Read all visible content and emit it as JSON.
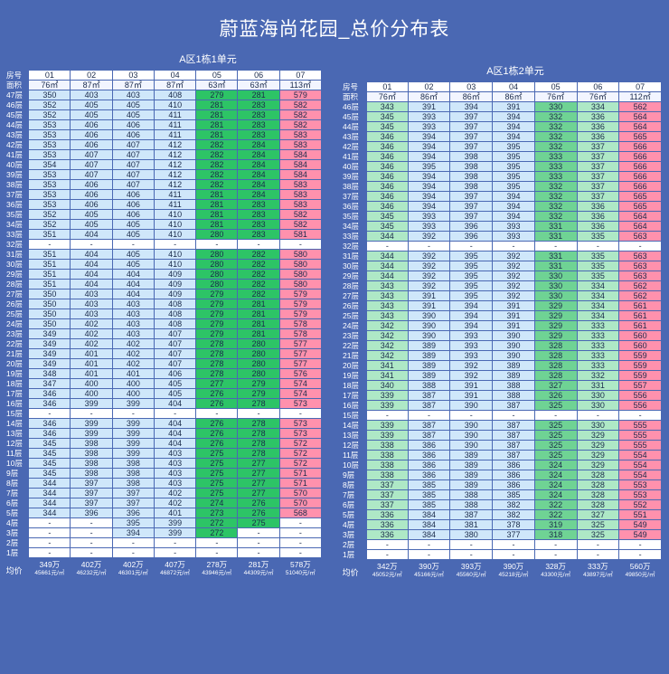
{
  "title": "蔚蓝海尚花园_总价分布表",
  "tableA": {
    "subtitle": "A区1栋1单元",
    "room_label": "房号",
    "area_label": "面积",
    "rooms": [
      "01",
      "02",
      "03",
      "04",
      "05",
      "06",
      "07"
    ],
    "areas": [
      "76㎡",
      "87㎡",
      "87㎡",
      "87㎡",
      "63㎡",
      "63㎡",
      "113㎡"
    ],
    "rows": [
      {
        "floor": "47层",
        "values": [
          "350",
          "403",
          "403",
          "408",
          "279",
          "281",
          "579"
        ]
      },
      {
        "floor": "46层",
        "values": [
          "352",
          "405",
          "405",
          "410",
          "281",
          "283",
          "582"
        ]
      },
      {
        "floor": "45层",
        "values": [
          "352",
          "405",
          "405",
          "411",
          "281",
          "283",
          "582"
        ]
      },
      {
        "floor": "44层",
        "values": [
          "353",
          "406",
          "406",
          "411",
          "281",
          "283",
          "582"
        ]
      },
      {
        "floor": "43层",
        "values": [
          "353",
          "406",
          "406",
          "411",
          "281",
          "283",
          "583"
        ]
      },
      {
        "floor": "42层",
        "values": [
          "353",
          "406",
          "407",
          "412",
          "282",
          "284",
          "583"
        ]
      },
      {
        "floor": "41层",
        "values": [
          "353",
          "407",
          "407",
          "412",
          "282",
          "284",
          "584"
        ]
      },
      {
        "floor": "40层",
        "values": [
          "354",
          "407",
          "407",
          "412",
          "282",
          "284",
          "584"
        ]
      },
      {
        "floor": "39层",
        "values": [
          "353",
          "407",
          "407",
          "412",
          "282",
          "284",
          "584"
        ]
      },
      {
        "floor": "38层",
        "values": [
          "353",
          "406",
          "407",
          "412",
          "282",
          "284",
          "583"
        ]
      },
      {
        "floor": "37层",
        "values": [
          "353",
          "406",
          "406",
          "411",
          "281",
          "284",
          "583"
        ]
      },
      {
        "floor": "36层",
        "values": [
          "353",
          "406",
          "406",
          "411",
          "281",
          "283",
          "583"
        ]
      },
      {
        "floor": "35层",
        "values": [
          "352",
          "405",
          "406",
          "410",
          "281",
          "283",
          "582"
        ]
      },
      {
        "floor": "34层",
        "values": [
          "352",
          "405",
          "405",
          "410",
          "281",
          "283",
          "582"
        ]
      },
      {
        "floor": "33层",
        "values": [
          "351",
          "404",
          "405",
          "410",
          "280",
          "283",
          "581"
        ]
      },
      {
        "floor": "32层",
        "values": [
          "-",
          "-",
          "-",
          "-",
          "-",
          "-",
          "-"
        ]
      },
      {
        "floor": "31层",
        "values": [
          "351",
          "404",
          "405",
          "410",
          "280",
          "282",
          "580"
        ]
      },
      {
        "floor": "30层",
        "values": [
          "351",
          "404",
          "405",
          "410",
          "280",
          "282",
          "580"
        ]
      },
      {
        "floor": "29层",
        "values": [
          "351",
          "404",
          "404",
          "409",
          "280",
          "282",
          "580"
        ]
      },
      {
        "floor": "28层",
        "values": [
          "351",
          "404",
          "404",
          "409",
          "280",
          "282",
          "580"
        ]
      },
      {
        "floor": "27层",
        "values": [
          "350",
          "403",
          "404",
          "409",
          "279",
          "282",
          "579"
        ]
      },
      {
        "floor": "26层",
        "values": [
          "350",
          "403",
          "403",
          "408",
          "279",
          "281",
          "579"
        ]
      },
      {
        "floor": "25层",
        "values": [
          "350",
          "403",
          "403",
          "408",
          "279",
          "281",
          "579"
        ]
      },
      {
        "floor": "24层",
        "values": [
          "350",
          "402",
          "403",
          "408",
          "279",
          "281",
          "578"
        ]
      },
      {
        "floor": "23层",
        "values": [
          "349",
          "402",
          "403",
          "407",
          "279",
          "281",
          "578"
        ]
      },
      {
        "floor": "22层",
        "values": [
          "349",
          "402",
          "402",
          "407",
          "278",
          "280",
          "577"
        ]
      },
      {
        "floor": "21层",
        "values": [
          "349",
          "401",
          "402",
          "407",
          "278",
          "280",
          "577"
        ]
      },
      {
        "floor": "20层",
        "values": [
          "349",
          "401",
          "402",
          "407",
          "278",
          "280",
          "577"
        ]
      },
      {
        "floor": "19层",
        "values": [
          "348",
          "401",
          "401",
          "406",
          "278",
          "280",
          "576"
        ]
      },
      {
        "floor": "18层",
        "values": [
          "347",
          "400",
          "400",
          "405",
          "277",
          "279",
          "574"
        ]
      },
      {
        "floor": "17层",
        "values": [
          "346",
          "400",
          "400",
          "405",
          "276",
          "279",
          "574"
        ]
      },
      {
        "floor": "16层",
        "values": [
          "346",
          "399",
          "399",
          "404",
          "276",
          "278",
          "573"
        ]
      },
      {
        "floor": "15层",
        "values": [
          "-",
          "-",
          "-",
          "-",
          "-",
          "-",
          "-"
        ]
      },
      {
        "floor": "14层",
        "values": [
          "346",
          "399",
          "399",
          "404",
          "276",
          "278",
          "573"
        ]
      },
      {
        "floor": "13层",
        "values": [
          "346",
          "399",
          "399",
          "404",
          "276",
          "278",
          "573"
        ]
      },
      {
        "floor": "12层",
        "values": [
          "345",
          "398",
          "399",
          "404",
          "276",
          "278",
          "572"
        ]
      },
      {
        "floor": "11层",
        "values": [
          "345",
          "398",
          "399",
          "403",
          "275",
          "278",
          "572"
        ]
      },
      {
        "floor": "10层",
        "values": [
          "345",
          "398",
          "398",
          "403",
          "275",
          "277",
          "572"
        ]
      },
      {
        "floor": "9层",
        "values": [
          "345",
          "398",
          "398",
          "403",
          "275",
          "277",
          "571"
        ]
      },
      {
        "floor": "8层",
        "values": [
          "344",
          "397",
          "398",
          "403",
          "275",
          "277",
          "571"
        ]
      },
      {
        "floor": "7层",
        "values": [
          "344",
          "397",
          "397",
          "402",
          "275",
          "277",
          "570"
        ]
      },
      {
        "floor": "6层",
        "values": [
          "344",
          "397",
          "397",
          "402",
          "274",
          "276",
          "570"
        ]
      },
      {
        "floor": "5层",
        "values": [
          "344",
          "396",
          "396",
          "401",
          "273",
          "276",
          "568"
        ]
      },
      {
        "floor": "4层",
        "values": [
          "-",
          "-",
          "395",
          "399",
          "272",
          "275",
          "-"
        ]
      },
      {
        "floor": "3层",
        "values": [
          "-",
          "-",
          "394",
          "399",
          "272",
          "-",
          "-"
        ]
      },
      {
        "floor": "2层",
        "values": [
          "-",
          "-",
          "-",
          "-",
          "-",
          "-",
          "-"
        ]
      },
      {
        "floor": "1层",
        "values": [
          "-",
          "-",
          "-",
          "-",
          "-",
          "-",
          "-"
        ]
      }
    ],
    "avg_label": "均价",
    "totals": [
      "349万",
      "402万",
      "402万",
      "407万",
      "278万",
      "281万",
      "578万"
    ],
    "unit_prices": [
      "45661元/㎡",
      "46232元/㎡",
      "46301元/㎡",
      "46872元/㎡",
      "43946元/㎡",
      "44309元/㎡",
      "51040元/㎡"
    ]
  },
  "tableB": {
    "subtitle": "A区1栋2单元",
    "room_label": "房号",
    "area_label": "面积",
    "rooms": [
      "01",
      "02",
      "03",
      "04",
      "05",
      "06",
      "07"
    ],
    "areas": [
      "76㎡",
      "86㎡",
      "86㎡",
      "86㎡",
      "76㎡",
      "76㎡",
      "112㎡"
    ],
    "rows": [
      {
        "floor": "46层",
        "values": [
          "343",
          "391",
          "394",
          "391",
          "330",
          "334",
          "562"
        ]
      },
      {
        "floor": "45层",
        "values": [
          "345",
          "393",
          "397",
          "394",
          "332",
          "336",
          "564"
        ]
      },
      {
        "floor": "44层",
        "values": [
          "345",
          "393",
          "397",
          "394",
          "332",
          "336",
          "564"
        ]
      },
      {
        "floor": "43层",
        "values": [
          "346",
          "394",
          "397",
          "394",
          "332",
          "336",
          "565"
        ]
      },
      {
        "floor": "42层",
        "values": [
          "346",
          "394",
          "397",
          "395",
          "332",
          "337",
          "566"
        ]
      },
      {
        "floor": "41层",
        "values": [
          "346",
          "394",
          "398",
          "395",
          "333",
          "337",
          "566"
        ]
      },
      {
        "floor": "40层",
        "values": [
          "346",
          "395",
          "398",
          "395",
          "333",
          "337",
          "566"
        ]
      },
      {
        "floor": "39层",
        "values": [
          "346",
          "394",
          "398",
          "395",
          "333",
          "337",
          "566"
        ]
      },
      {
        "floor": "38层",
        "values": [
          "346",
          "394",
          "398",
          "395",
          "332",
          "337",
          "566"
        ]
      },
      {
        "floor": "37层",
        "values": [
          "346",
          "394",
          "397",
          "394",
          "332",
          "337",
          "565"
        ]
      },
      {
        "floor": "36层",
        "values": [
          "346",
          "394",
          "397",
          "394",
          "332",
          "336",
          "565"
        ]
      },
      {
        "floor": "35层",
        "values": [
          "345",
          "393",
          "397",
          "394",
          "332",
          "336",
          "564"
        ]
      },
      {
        "floor": "34层",
        "values": [
          "345",
          "393",
          "396",
          "393",
          "331",
          "336",
          "564"
        ]
      },
      {
        "floor": "33层",
        "values": [
          "344",
          "392",
          "396",
          "393",
          "331",
          "335",
          "563"
        ]
      },
      {
        "floor": "32层",
        "values": [
          "-",
          "-",
          "-",
          "-",
          "-",
          "-",
          "-"
        ]
      },
      {
        "floor": "31层",
        "values": [
          "344",
          "392",
          "395",
          "392",
          "331",
          "335",
          "563"
        ]
      },
      {
        "floor": "30层",
        "values": [
          "344",
          "392",
          "395",
          "392",
          "331",
          "335",
          "563"
        ]
      },
      {
        "floor": "29层",
        "values": [
          "344",
          "392",
          "395",
          "392",
          "330",
          "335",
          "563"
        ]
      },
      {
        "floor": "28层",
        "values": [
          "343",
          "392",
          "395",
          "392",
          "330",
          "334",
          "562"
        ]
      },
      {
        "floor": "27层",
        "values": [
          "343",
          "391",
          "395",
          "392",
          "330",
          "334",
          "562"
        ]
      },
      {
        "floor": "26层",
        "values": [
          "343",
          "391",
          "394",
          "391",
          "329",
          "334",
          "561"
        ]
      },
      {
        "floor": "25层",
        "values": [
          "343",
          "390",
          "394",
          "391",
          "329",
          "334",
          "561"
        ]
      },
      {
        "floor": "24层",
        "values": [
          "342",
          "390",
          "394",
          "391",
          "329",
          "333",
          "561"
        ]
      },
      {
        "floor": "23层",
        "values": [
          "342",
          "390",
          "393",
          "390",
          "329",
          "333",
          "560"
        ]
      },
      {
        "floor": "22层",
        "values": [
          "342",
          "389",
          "393",
          "390",
          "328",
          "333",
          "560"
        ]
      },
      {
        "floor": "21层",
        "values": [
          "342",
          "389",
          "393",
          "390",
          "328",
          "333",
          "559"
        ]
      },
      {
        "floor": "20层",
        "values": [
          "341",
          "389",
          "392",
          "389",
          "328",
          "333",
          "559"
        ]
      },
      {
        "floor": "19层",
        "values": [
          "341",
          "389",
          "392",
          "389",
          "328",
          "332",
          "559"
        ]
      },
      {
        "floor": "18层",
        "values": [
          "340",
          "388",
          "391",
          "388",
          "327",
          "331",
          "557"
        ]
      },
      {
        "floor": "17层",
        "values": [
          "339",
          "387",
          "391",
          "388",
          "326",
          "330",
          "556"
        ]
      },
      {
        "floor": "16层",
        "values": [
          "339",
          "387",
          "390",
          "387",
          "325",
          "330",
          "556"
        ]
      },
      {
        "floor": "15层",
        "values": [
          "-",
          "-",
          "-",
          "-",
          "-",
          "-",
          "-"
        ]
      },
      {
        "floor": "14层",
        "values": [
          "339",
          "387",
          "390",
          "387",
          "325",
          "330",
          "555"
        ]
      },
      {
        "floor": "13层",
        "values": [
          "339",
          "387",
          "390",
          "387",
          "325",
          "329",
          "555"
        ]
      },
      {
        "floor": "12层",
        "values": [
          "338",
          "386",
          "390",
          "387",
          "325",
          "329",
          "555"
        ]
      },
      {
        "floor": "11层",
        "values": [
          "338",
          "386",
          "389",
          "387",
          "325",
          "329",
          "554"
        ]
      },
      {
        "floor": "10层",
        "values": [
          "338",
          "386",
          "389",
          "386",
          "324",
          "329",
          "554"
        ]
      },
      {
        "floor": "9层",
        "values": [
          "338",
          "386",
          "389",
          "386",
          "324",
          "328",
          "554"
        ]
      },
      {
        "floor": "8层",
        "values": [
          "337",
          "385",
          "389",
          "386",
          "324",
          "328",
          "553"
        ]
      },
      {
        "floor": "7层",
        "values": [
          "337",
          "385",
          "388",
          "385",
          "324",
          "328",
          "553"
        ]
      },
      {
        "floor": "6层",
        "values": [
          "337",
          "385",
          "388",
          "382",
          "322",
          "328",
          "552"
        ]
      },
      {
        "floor": "5层",
        "values": [
          "336",
          "384",
          "387",
          "382",
          "322",
          "327",
          "551"
        ]
      },
      {
        "floor": "4层",
        "values": [
          "336",
          "384",
          "381",
          "378",
          "319",
          "325",
          "549"
        ]
      },
      {
        "floor": "3层",
        "values": [
          "336",
          "384",
          "380",
          "377",
          "318",
          "325",
          "549"
        ]
      },
      {
        "floor": "2层",
        "values": [
          "-",
          "-",
          "-",
          "-",
          "-",
          "-",
          "-"
        ]
      },
      {
        "floor": "1层",
        "values": [
          "-",
          "-",
          "-",
          "-",
          "-",
          "-",
          "-"
        ]
      }
    ],
    "avg_label": "均价",
    "totals": [
      "342万",
      "390万",
      "393万",
      "390万",
      "328万",
      "333万",
      "560万"
    ],
    "unit_prices": [
      "45052元/㎡",
      "45166元/㎡",
      "45560元/㎡",
      "45218元/㎡",
      "43300元/㎡",
      "43897元/㎡",
      "49850元/㎡"
    ]
  },
  "colors": {
    "background": "#4a68b3",
    "light_blue": "#cfe7fa",
    "light_green": "#aee8c6",
    "green": "#2dc466",
    "medium_green": "#6fd394",
    "pink": "#ff91ad",
    "white": "#ffffff"
  }
}
